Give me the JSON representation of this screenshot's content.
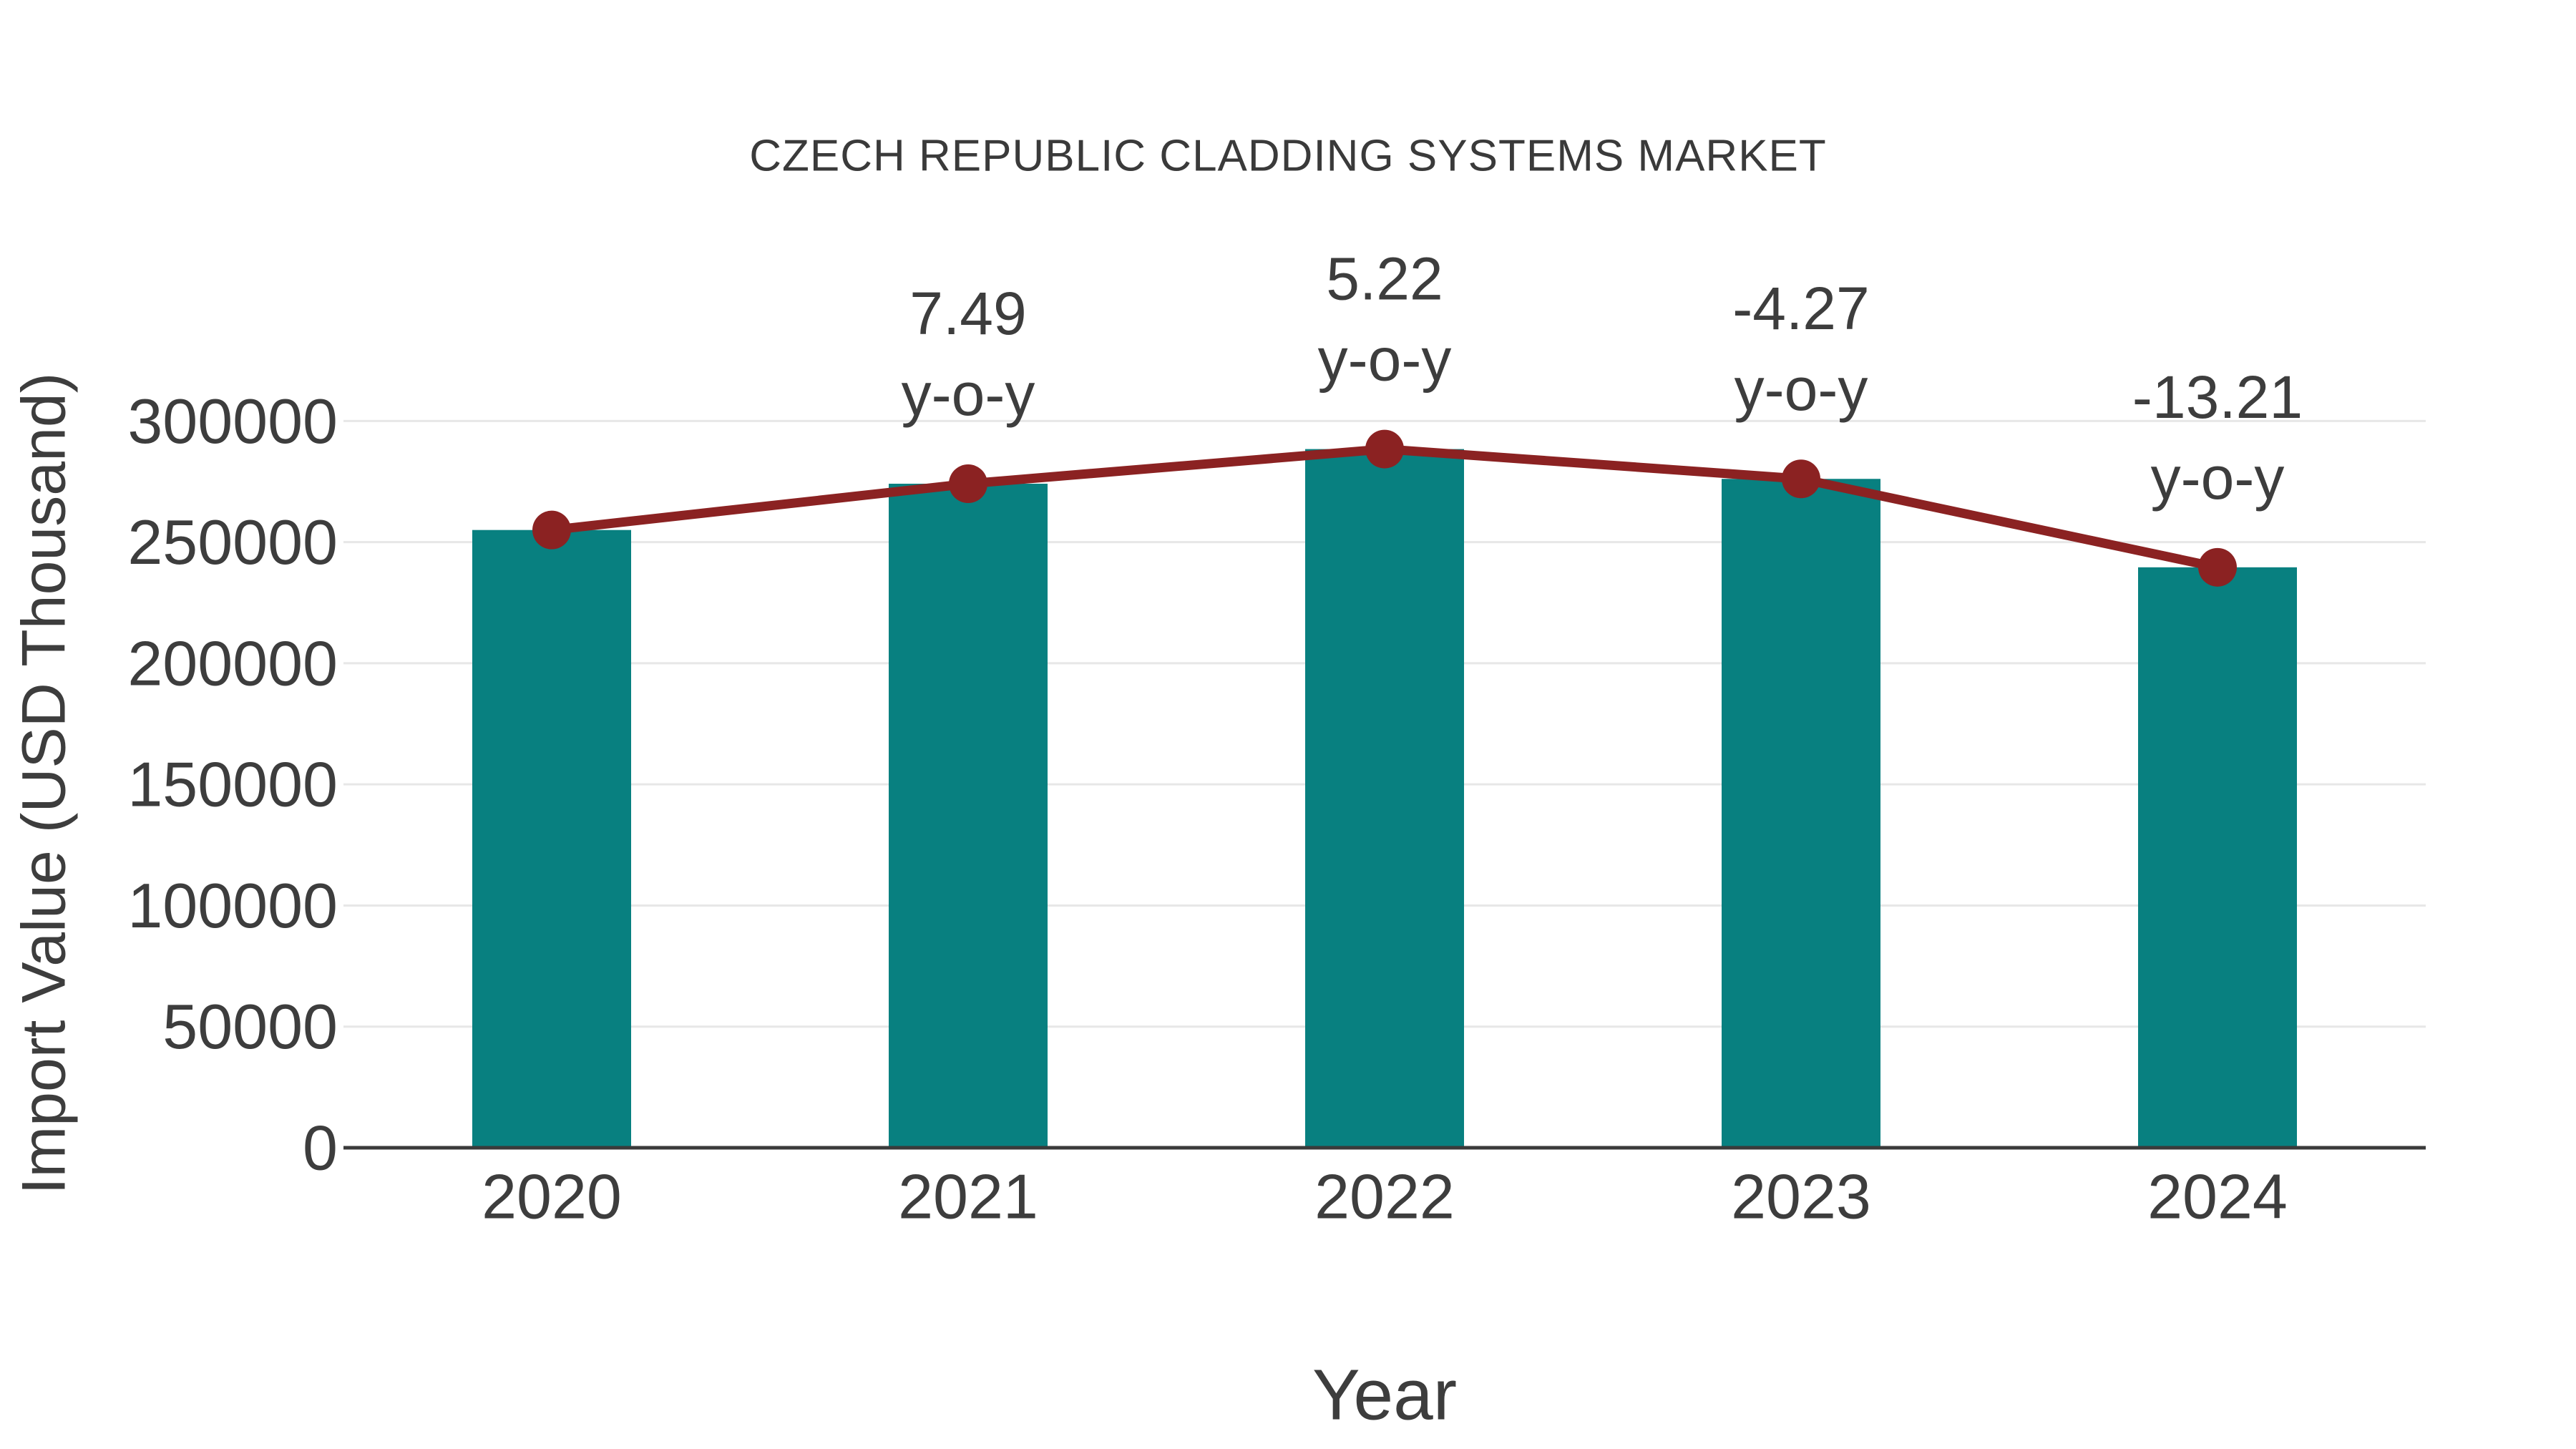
{
  "chart_data": {
    "type": "bar",
    "title": "CZECH REPUBLIC CLADDING SYSTEMS MARKET",
    "xlabel": "Year",
    "ylabel": "Import Value (USD Thousand)",
    "categories": [
      "2020",
      "2021",
      "2022",
      "2023",
      "2024"
    ],
    "series": [
      {
        "name": "Import Value bars",
        "type": "bar",
        "values": [
          255000,
          274100,
          288400,
          276100,
          239600
        ]
      },
      {
        "name": "Import Value trend line",
        "type": "line",
        "values": [
          255000,
          274100,
          288400,
          276100,
          239600
        ]
      }
    ],
    "annotations": [
      {
        "category": "2021",
        "value_label": "7.49",
        "unit_label": "y-o-y"
      },
      {
        "category": "2022",
        "value_label": "5.22",
        "unit_label": "y-o-y"
      },
      {
        "category": "2023",
        "value_label": "-4.27",
        "unit_label": "y-o-y"
      },
      {
        "category": "2024",
        "value_label": "-13.21",
        "unit_label": "y-o-y"
      }
    ],
    "ylim": [
      0,
      300000
    ],
    "yticks": [
      0,
      50000,
      100000,
      150000,
      200000,
      250000,
      300000
    ],
    "grid": true,
    "legend_position": "none",
    "colors": {
      "bar": "#088080",
      "line": "#8b2222",
      "marker": "#8b2222",
      "grid": "#e7e7e7",
      "axis": "#3a3a3a",
      "text": "#3d3d3d",
      "background": "#ffffff"
    }
  }
}
